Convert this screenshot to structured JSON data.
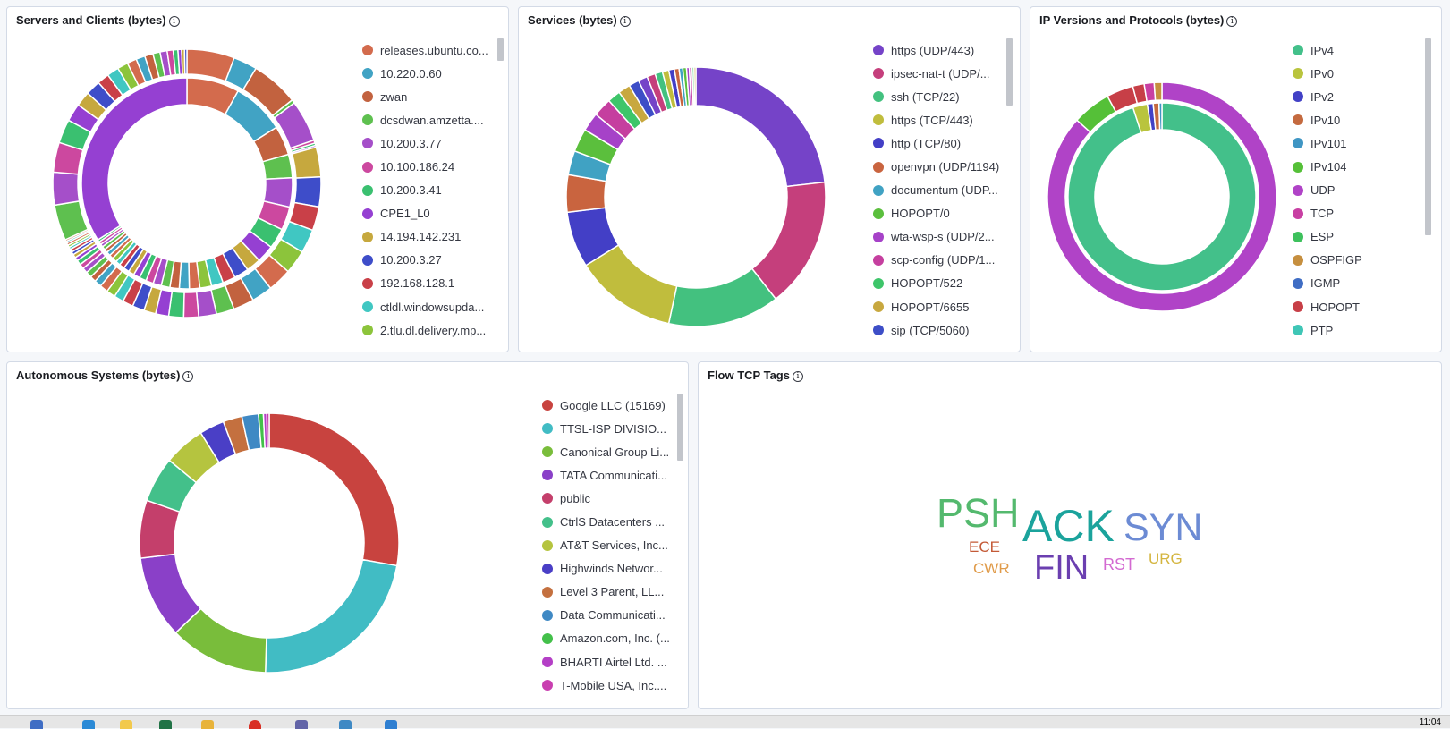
{
  "panels": {
    "servers": {
      "title": "Servers and Clients (bytes)",
      "legend": [
        {
          "label": "releases.ubuntu.co...",
          "color": "#d36b4d"
        },
        {
          "label": "10.220.0.60",
          "color": "#41a3c4"
        },
        {
          "label": "zwan",
          "color": "#c2623f"
        },
        {
          "label": "dcsdwan.amzetta....",
          "color": "#5ec04f"
        },
        {
          "label": "10.200.3.77",
          "color": "#a54fc9"
        },
        {
          "label": "10.100.186.24",
          "color": "#cc489f"
        },
        {
          "label": "10.200.3.41",
          "color": "#3ac070"
        },
        {
          "label": "CPE1_L0",
          "color": "#9540d2"
        },
        {
          "label": "14.194.142.231",
          "color": "#c6a83e"
        },
        {
          "label": "10.200.3.27",
          "color": "#3e4dc9"
        },
        {
          "label": "192.168.128.1",
          "color": "#c94048"
        },
        {
          "label": "ctldl.windowsupda...",
          "color": "#40c7c2"
        },
        {
          "label": "2.tlu.dl.delivery.mp...",
          "color": "#8cc43b"
        }
      ]
    },
    "services": {
      "title": "Services (bytes)",
      "legend": [
        {
          "label": "https (UDP/443)",
          "color": "#7543c8"
        },
        {
          "label": "ipsec-nat-t (UDP/...",
          "color": "#c53f7c"
        },
        {
          "label": "ssh (TCP/22)",
          "color": "#43c17f"
        },
        {
          "label": "https (TCP/443)",
          "color": "#c0bd3d"
        },
        {
          "label": "http (TCP/80)",
          "color": "#433fc6"
        },
        {
          "label": "openvpn (UDP/1194)",
          "color": "#c9643f"
        },
        {
          "label": "documentum (UDP...",
          "color": "#40a2c3"
        },
        {
          "label": "HOPOPT/0",
          "color": "#5bbf3d"
        },
        {
          "label": "wta-wsp-s (UDP/2...",
          "color": "#a642c8"
        },
        {
          "label": "scp-config (UDP/1...",
          "color": "#c53f9f"
        },
        {
          "label": "HOPOPT/522",
          "color": "#3ec56a"
        },
        {
          "label": "HOPOPT/6655",
          "color": "#c8a83f"
        },
        {
          "label": "sip (TCP/5060)",
          "color": "#3d4ec7"
        }
      ]
    },
    "ip": {
      "title": "IP Versions and Protocols (bytes)",
      "legend": [
        {
          "label": "IPv4",
          "color": "#43c08a"
        },
        {
          "label": "IPv0",
          "color": "#b9c43d"
        },
        {
          "label": "IPv2",
          "color": "#4241c6"
        },
        {
          "label": "IPv10",
          "color": "#c46a3f"
        },
        {
          "label": "IPv101",
          "color": "#3f96c4"
        },
        {
          "label": "IPv104",
          "color": "#55c038"
        },
        {
          "label": "UDP",
          "color": "#b043c7"
        },
        {
          "label": "TCP",
          "color": "#c83fa3"
        },
        {
          "label": "ESP",
          "color": "#3ec15d"
        },
        {
          "label": "OSPFIGP",
          "color": "#c68f3f"
        },
        {
          "label": "IGMP",
          "color": "#3f6dc4"
        },
        {
          "label": "HOPOPT",
          "color": "#c73f47"
        },
        {
          "label": "PTP",
          "color": "#3fc6b6"
        }
      ]
    },
    "as": {
      "title": "Autonomous Systems (bytes)",
      "legend": [
        {
          "label": "Google LLC (15169)",
          "color": "#c8433f"
        },
        {
          "label": "TTSL-ISP DIVISIO...",
          "color": "#41bcc4"
        },
        {
          "label": "Canonical Group Li...",
          "color": "#79bd3b"
        },
        {
          "label": "TATA Communicati...",
          "color": "#8a40c8"
        },
        {
          "label": "public",
          "color": "#c43f6b"
        },
        {
          "label": "CtrlS Datacenters ...",
          "color": "#43c08a"
        },
        {
          "label": "AT&T Services, Inc...",
          "color": "#b5c43f"
        },
        {
          "label": "Highwinds Networ...",
          "color": "#4a3fc6"
        },
        {
          "label": "Level 3 Parent, LL...",
          "color": "#c4703f"
        },
        {
          "label": "Data Communicati...",
          "color": "#3f89c4"
        },
        {
          "label": "Amazon.com, Inc. (...",
          "color": "#43c04a"
        },
        {
          "label": "BHARTI Airtel Ltd. ...",
          "color": "#b43fc6"
        },
        {
          "label": "T-Mobile USA, Inc....",
          "color": "#c93fb0"
        }
      ]
    },
    "tags": {
      "title": "Flow TCP Tags",
      "words": [
        {
          "text": "PSH",
          "color": "#54b96e"
        },
        {
          "text": "ACK",
          "color": "#1ba39c"
        },
        {
          "text": "SYN",
          "color": "#6c8bd4"
        },
        {
          "text": "ECE",
          "color": "#c45a37"
        },
        {
          "text": "FIN",
          "color": "#6b3fb0"
        },
        {
          "text": "RST",
          "color": "#d36ad1"
        },
        {
          "text": "URG",
          "color": "#d4b53f"
        },
        {
          "text": "CWR",
          "color": "#e09b4a"
        }
      ]
    }
  },
  "clock": "11:04",
  "info_glyph": "i"
}
